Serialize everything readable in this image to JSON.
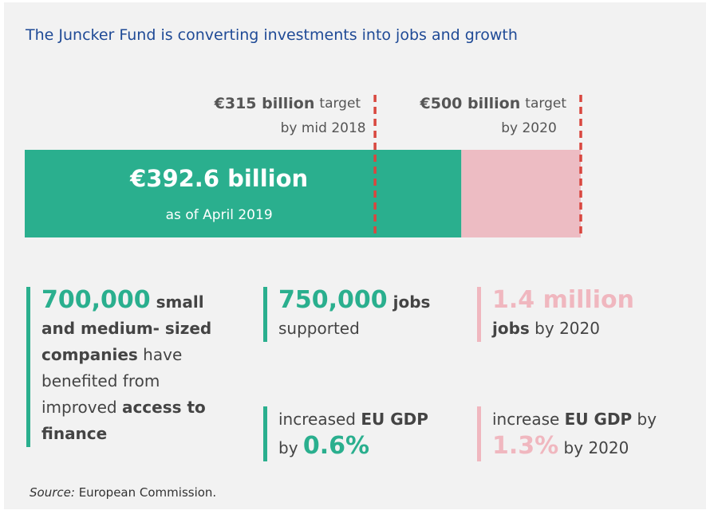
{
  "title": "The Juncker Fund is converting investments into jobs and growth",
  "progress": {
    "xlim": [
      0,
      500
    ],
    "current": {
      "value": 392.6,
      "label": "€392.6 billion",
      "note": "as of April 2019",
      "color": "#2aaf8e"
    },
    "remainder_color": "#edbcc3",
    "marker_color": "#d9473f",
    "targets": [
      {
        "value": 315,
        "label": "€315 billion",
        "word": "target",
        "note": "by mid 2018"
      },
      {
        "value": 500,
        "label": "€500 billion",
        "word": "target",
        "note": "by 2020"
      }
    ]
  },
  "stats": [
    {
      "color": "#2aaf8e",
      "lines": [
        [
          {
            "t": "700,000",
            "s": "big"
          },
          {
            "t": " small and medium- sized companies",
            "s": "bold"
          },
          {
            "t": " have benefited from improved ",
            "s": "normal"
          },
          {
            "t": "access to finance",
            "s": "bold"
          }
        ]
      ]
    },
    {
      "color": "#2aaf8e",
      "lines": [
        [
          {
            "t": "750,000",
            "s": "big"
          },
          {
            "t": " jobs",
            "s": "bold"
          }
        ],
        [
          {
            "t": "supported",
            "s": "normal"
          }
        ]
      ]
    },
    {
      "color": "#f0b7bf",
      "lines": [
        [
          {
            "t": "1.4 million",
            "s": "big"
          }
        ],
        [
          {
            "t": "jobs",
            "s": "bold"
          },
          {
            "t": " by 2020",
            "s": "normal"
          }
        ]
      ]
    },
    {
      "color": "#2aaf8e",
      "lines": [
        [
          {
            "t": "increased ",
            "s": "normal"
          },
          {
            "t": "EU GDP",
            "s": "bold"
          }
        ],
        [
          {
            "t": "by ",
            "s": "normal"
          },
          {
            "t": "0.6%",
            "s": "big"
          }
        ]
      ]
    },
    {
      "color": "#f0b7bf",
      "lines": [
        [
          {
            "t": "increase ",
            "s": "normal"
          },
          {
            "t": "EU GDP",
            "s": "bold"
          },
          {
            "t": " by",
            "s": "normal"
          }
        ],
        [
          {
            "t": "1.3%",
            "s": "big"
          },
          {
            "t": " by 2020",
            "s": "normal"
          }
        ]
      ]
    }
  ],
  "source": {
    "label": "Source:",
    "text": "European Commission."
  }
}
